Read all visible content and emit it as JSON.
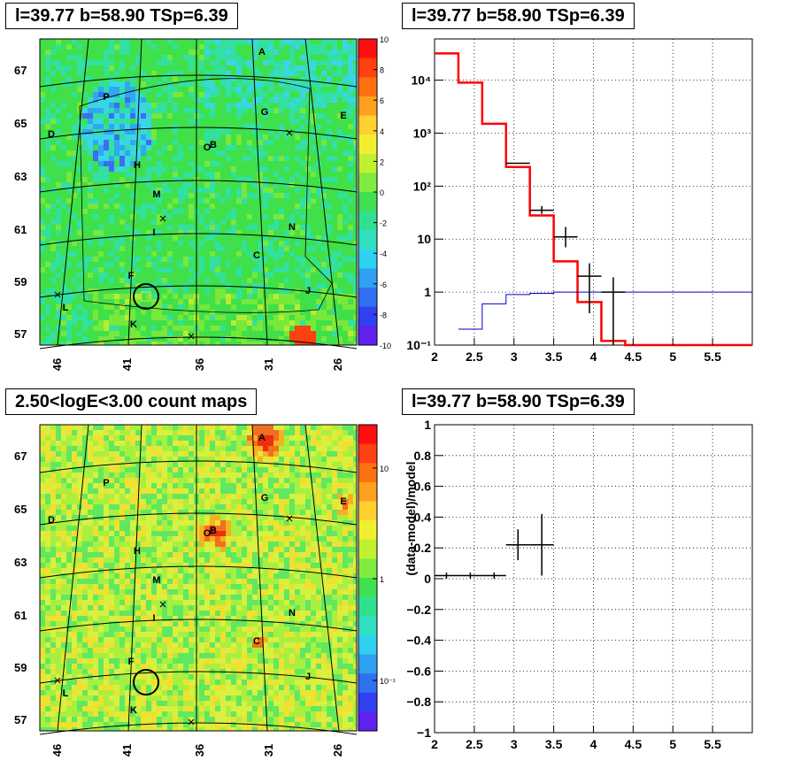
{
  "titles": {
    "top_left": "l=39.77 b=58.90 TSp=6.39",
    "top_right": "l=39.77 b=58.90 TSp=6.39",
    "bottom_left": "2.50<logE<3.00 count maps",
    "bottom_right": "l=39.77 b=58.90 TSp=6.39"
  },
  "maps": {
    "lon_ticks": [
      "46",
      "41",
      "36",
      "31",
      "26"
    ],
    "lat_ticks": [
      "67",
      "65",
      "63",
      "61",
      "59",
      "57"
    ],
    "sources": [
      "A",
      "B",
      "C",
      "D",
      "E",
      "F",
      "G",
      "H",
      "I",
      "J",
      "K",
      "L",
      "M",
      "N",
      "P"
    ],
    "colorbar_top": [
      "10",
      "8",
      "6",
      "4",
      "2",
      "0",
      "-2",
      "-4",
      "-6",
      "-8",
      "-10"
    ],
    "colorbar_bottom": [
      "10",
      "1",
      "10⁻¹"
    ]
  },
  "chart_data": [
    {
      "type": "heatmap",
      "title": "l=39.77 b=58.90 TSp=6.39",
      "xlabel": "",
      "ylabel": "",
      "x_ticks": [
        46,
        41,
        36,
        31,
        26
      ],
      "y_ticks": [
        67,
        65,
        63,
        61,
        59,
        57
      ],
      "color_range": [
        -10,
        10
      ],
      "source_labels": [
        "A",
        "B",
        "C",
        "D",
        "E",
        "F",
        "G",
        "H",
        "I",
        "J",
        "K",
        "L",
        "M",
        "N",
        "P"
      ]
    },
    {
      "type": "line",
      "title": "l=39.77 b=58.90 TSp=6.39",
      "y_scale": "log",
      "xlim": [
        2,
        6
      ],
      "ylim": [
        0.1,
        60000
      ],
      "x_ticks": [
        "2",
        "2.5",
        "3",
        "3.5",
        "4",
        "4.5",
        "5",
        "5.5"
      ],
      "y_ticks": [
        "10⁻¹",
        "1",
        "10",
        "10²",
        "10³",
        "10⁴"
      ],
      "series": [
        {
          "edges": [
            2.0,
            2.3,
            2.6,
            2.9,
            3.2,
            3.5,
            3.8,
            4.1,
            4.4,
            6.0
          ],
          "values": [
            32000,
            9000,
            1500,
            230,
            28,
            3.8,
            0.65,
            0.12,
            0.1
          ],
          "color": "#ff0000"
        },
        {
          "edges": [
            2.3,
            2.6,
            2.9,
            3.2,
            3.5,
            3.8,
            4.1,
            4.4,
            6.0
          ],
          "values": [
            0.2,
            0.6,
            0.9,
            0.95,
            1.0,
            1.0,
            1.0,
            1.0
          ],
          "color": "#0000cc"
        },
        {
          "x": [
            3.05,
            3.35,
            3.65,
            3.95,
            4.25
          ],
          "y": [
            270,
            35,
            11,
            2,
            1.0
          ],
          "yerr_lo": [
            0,
            5,
            4,
            1.6,
            0.9
          ],
          "yerr_hi": [
            0,
            7,
            6,
            1.5,
            0.9
          ],
          "color": "#000000"
        }
      ]
    },
    {
      "type": "heatmap",
      "title": "2.50<logE<3.00 count maps",
      "xlabel": "",
      "ylabel": "",
      "x_ticks": [
        46,
        41,
        36,
        31,
        26
      ],
      "y_ticks": [
        67,
        65,
        63,
        61,
        59,
        57
      ],
      "color_scale": "log",
      "color_ticks": [
        "10",
        "1",
        "10⁻¹"
      ],
      "source_labels": [
        "A",
        "B",
        "C",
        "D",
        "E",
        "F",
        "G",
        "H",
        "I",
        "J",
        "K",
        "L",
        "M",
        "N",
        "P"
      ]
    },
    {
      "type": "scatter",
      "title": "l=39.77 b=58.90 TSp=6.39",
      "xlabel": "",
      "ylabel": "(data-model)/model",
      "xlim": [
        2,
        6
      ],
      "ylim": [
        -1,
        1
      ],
      "x_ticks": [
        "2",
        "2.5",
        "3",
        "3.5",
        "4",
        "4.5",
        "5",
        "5.5"
      ],
      "y_ticks": [
        "1",
        "0.8",
        "0.6",
        "0.4",
        "0.2",
        "0",
        "−0.2",
        "−0.4",
        "−0.6",
        "−0.8",
        "−1"
      ],
      "series": [
        {
          "x": [
            2.15,
            2.45,
            2.75,
            3.05,
            3.35
          ],
          "y": [
            0.02,
            0.02,
            0.02,
            0.22,
            0.22
          ],
          "xerr": [
            0.15,
            0.15,
            0.15,
            0.15,
            0.15
          ],
          "yerr": [
            0.02,
            0.02,
            0.02,
            0.1,
            0.2
          ]
        }
      ]
    }
  ]
}
